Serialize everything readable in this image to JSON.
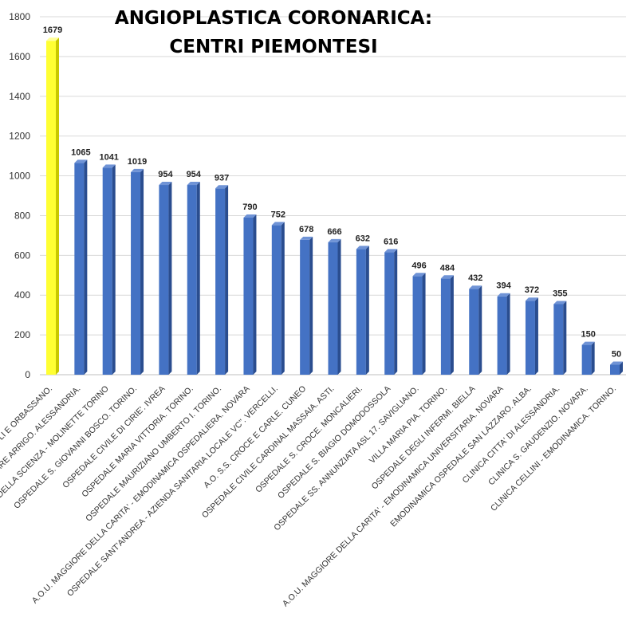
{
  "chart_data": {
    "type": "bar",
    "title": [
      "ANGIOPLASTICA CORONARICA:",
      "CENTRI PIEMONTESI"
    ],
    "ylim": [
      0,
      1800
    ],
    "yticks": [
      0,
      200,
      400,
      600,
      800,
      1000,
      1200,
      1400,
      1600,
      1800
    ],
    "grid": true,
    "categories": [
      "… LI E ORBASSANO.",
      "… ARE ARRIGO. ALESSANDRIA.",
      "… DELLA SCIENZA - MOLINETTE TORINO",
      "OSPEDALE S. GIOVANNI BOSCO. TORINO.",
      "OSPEDALE CIVILE DI CIRIE'. IVREA",
      "OSPEDALE MARIA VITTORIA. TORINO.",
      "OSPEDALE MAURIZIANO UMBERTO I. TORINO.",
      "A.O.U. MAGGIORE DELLA CARITA' - EMODINAMICA OSPEDALIERA. NOVARA",
      "OSPEDALE SANT'ANDREA - AZIENDA SANITARIA LOCALE VC\". VERCELLI.",
      "A.O. S.S. CROCE E CARLE. CUNEO",
      "OSPEDALE CIVILE CARDINAL MASSAIA. ASTI.",
      "OSPEDALE S. CROCE. MONCALIERI.",
      "OSPEDALE S. BIAGIO DOMODOSSOLA",
      "OSPEDALE SS. ANNUNZIATA ASL 17. SAVIGLIANO.",
      "VILLA MARIA PIA. TORINO.",
      "OSPEDALE DEGLI INFERMI. BIELLA",
      "A.O.U. MAGGIORE DELLA CARITA' - EMODINAMICA UNIVERSITARIA. NOVARA",
      "EMODINAMICA OSPEDALE SAN LAZZARO. ALBA.",
      "CLINICA CITTA' DI ALESSANDRIA.",
      "CLINICA S. GAUDENZIO. NOVARA.",
      "CLINICA CELLINI - EMODINAMICA. TORINO."
    ],
    "values": [
      1679,
      1065,
      1041,
      1019,
      954,
      954,
      937,
      790,
      752,
      678,
      666,
      632,
      616,
      496,
      484,
      432,
      394,
      372,
      355,
      150,
      50
    ],
    "highlight_index": 0,
    "colors": {
      "bar": "#4472c4",
      "bar_side": "#2a4d8f",
      "bar_top": "#6f93d6",
      "highlight": "#ffff33",
      "highlight_side": "#c8c800",
      "highlight_top": "#ffff99"
    }
  }
}
